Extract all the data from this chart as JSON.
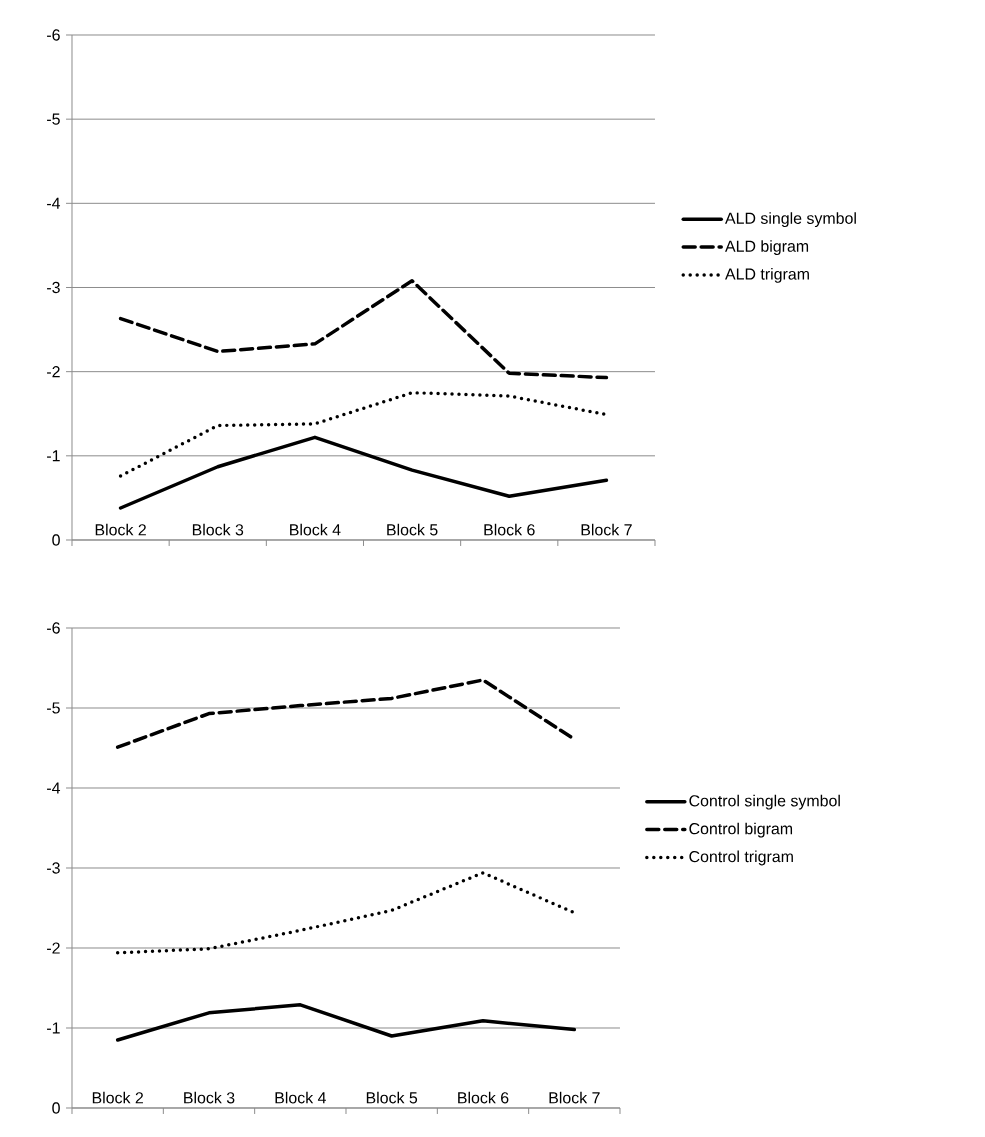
{
  "chart_data": [
    {
      "type": "line",
      "categories": [
        "Block 2",
        "Block 3",
        "Block 4",
        "Block 5",
        "Block 6",
        "Block 7"
      ],
      "series": [
        {
          "name": "ALD single symbol",
          "color": "#000000",
          "line_style": "solid",
          "values": [
            -0.38,
            -0.87,
            -1.22,
            -0.83,
            -0.52,
            -0.71
          ]
        },
        {
          "name": "ALD bigram",
          "color": "#000000",
          "line_style": "dashed",
          "values": [
            -2.63,
            -2.24,
            -2.33,
            -3.08,
            -1.98,
            -1.93
          ]
        },
        {
          "name": "ALD trigram",
          "color": "#000000",
          "line_style": "dotted",
          "values": [
            -0.76,
            -1.36,
            -1.38,
            -1.75,
            -1.71,
            -1.49
          ]
        }
      ],
      "ylim": [
        0,
        -6
      ],
      "yticks": [
        -6,
        -5,
        -4,
        -3,
        -2,
        -1,
        0
      ],
      "grid": "y",
      "legend": "right"
    },
    {
      "type": "line",
      "categories": [
        "Block 2",
        "Block 3",
        "Block 4",
        "Block 5",
        "Block 6",
        "Block 7"
      ],
      "series": [
        {
          "name": "Control single symbol",
          "color": "#000000",
          "line_style": "solid",
          "values": [
            -0.85,
            -1.19,
            -1.29,
            -0.9,
            -1.09,
            -0.98
          ]
        },
        {
          "name": "Control bigram",
          "color": "#000000",
          "line_style": "dashed",
          "values": [
            -4.51,
            -4.93,
            -5.03,
            -5.12,
            -5.35,
            -4.61
          ]
        },
        {
          "name": "Control trigram",
          "color": "#000000",
          "line_style": "dotted",
          "values": [
            -1.94,
            -1.99,
            -2.22,
            -2.47,
            -2.94,
            -2.44
          ]
        }
      ],
      "ylim": [
        0,
        -6
      ],
      "yticks": [
        -6,
        -5,
        -4,
        -3,
        -2,
        -1,
        0
      ],
      "grid": "y",
      "legend": "right"
    }
  ]
}
